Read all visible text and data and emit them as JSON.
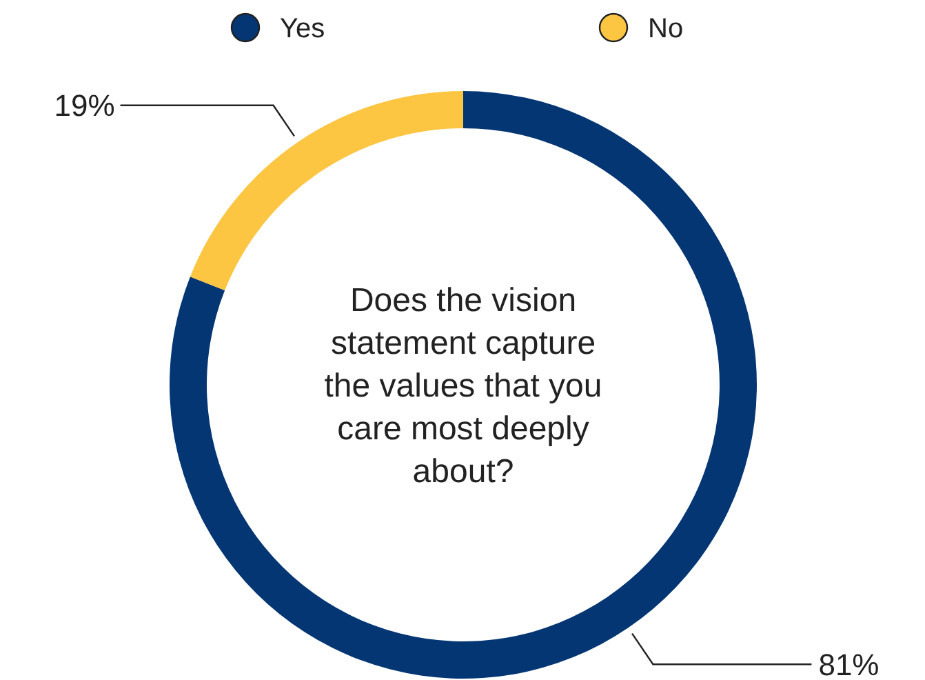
{
  "chart_data": {
    "type": "donut",
    "title": "Does the vision statement capture the values that you care most deeply about?",
    "categories": [
      "Yes",
      "No"
    ],
    "values": [
      81,
      19
    ],
    "colors": [
      "#043673",
      "#fcc542"
    ],
    "value_labels": [
      "81%",
      "19%"
    ],
    "legend": "top"
  }
}
